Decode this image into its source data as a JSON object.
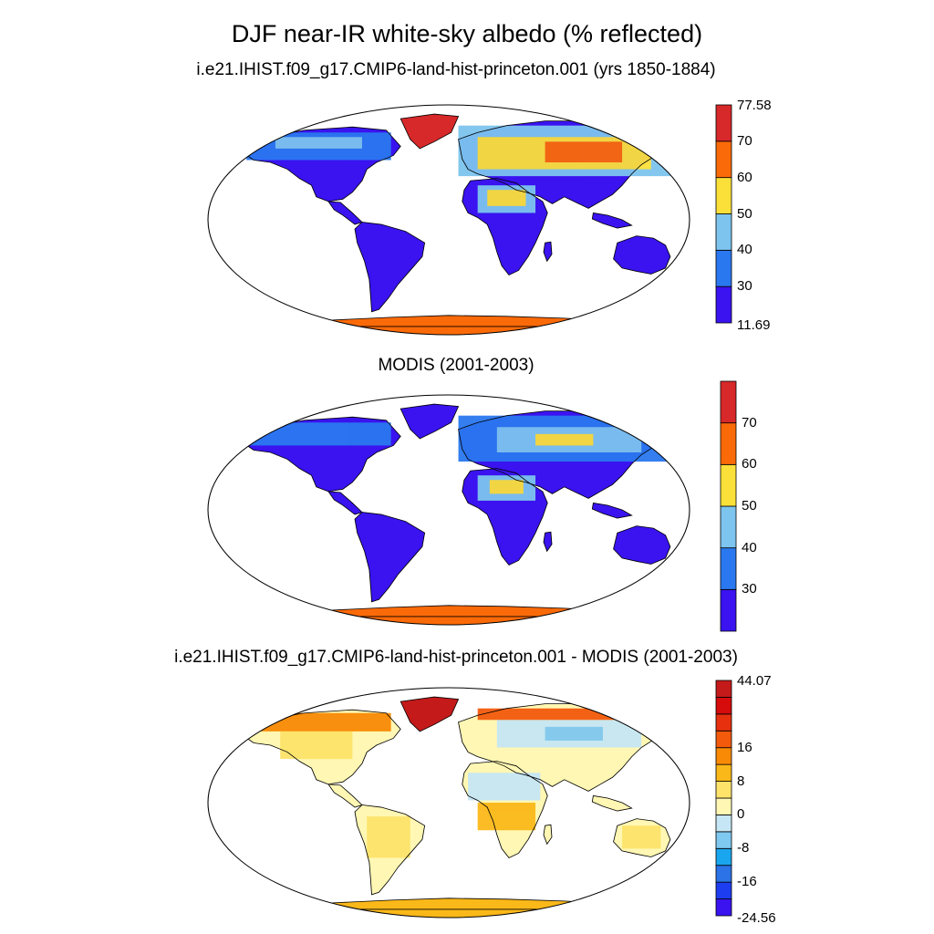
{
  "title": "DJF near-IR white-sky albedo (% reflected)",
  "panels": [
    {
      "title": "i.e21.IHIST.f09_g17.CMIP6-land-hist-princeton.001 (yrs 1850-1884)",
      "colorbar": {
        "colors": [
          "#3a13f0",
          "#2a78ef",
          "#7dc4ee",
          "#fbe03a",
          "#fb6a08",
          "#d7282a"
        ],
        "labels": [
          "11.69",
          "30",
          "40",
          "50",
          "60",
          "70",
          "77.58"
        ]
      }
    },
    {
      "title": "MODIS (2001-2003)",
      "colorbar": {
        "colors": [
          "#3a13f0",
          "#2a78ef",
          "#7dc4ee",
          "#fbe03a",
          "#fb6a08",
          "#d7282a"
        ],
        "labels": [
          "30",
          "40",
          "50",
          "60",
          "70"
        ]
      }
    },
    {
      "title": "i.e21.IHIST.f09_g17.CMIP6-land-hist-princeton.001 - MODIS (2001-2003)",
      "colorbar": {
        "colors": [
          "#3a13f0",
          "#1d3ef0",
          "#2b73e6",
          "#1aa6ef",
          "#7fc8f0",
          "#c6e6f5",
          "#fff7b3",
          "#fde36a",
          "#fbb819",
          "#f98a06",
          "#f35a0c",
          "#e6300e",
          "#d60b0b",
          "#c41a1a"
        ],
        "labels": [
          "44.07",
          "16",
          "8",
          "0",
          "-8",
          "-16",
          "-24.56"
        ]
      }
    }
  ]
}
